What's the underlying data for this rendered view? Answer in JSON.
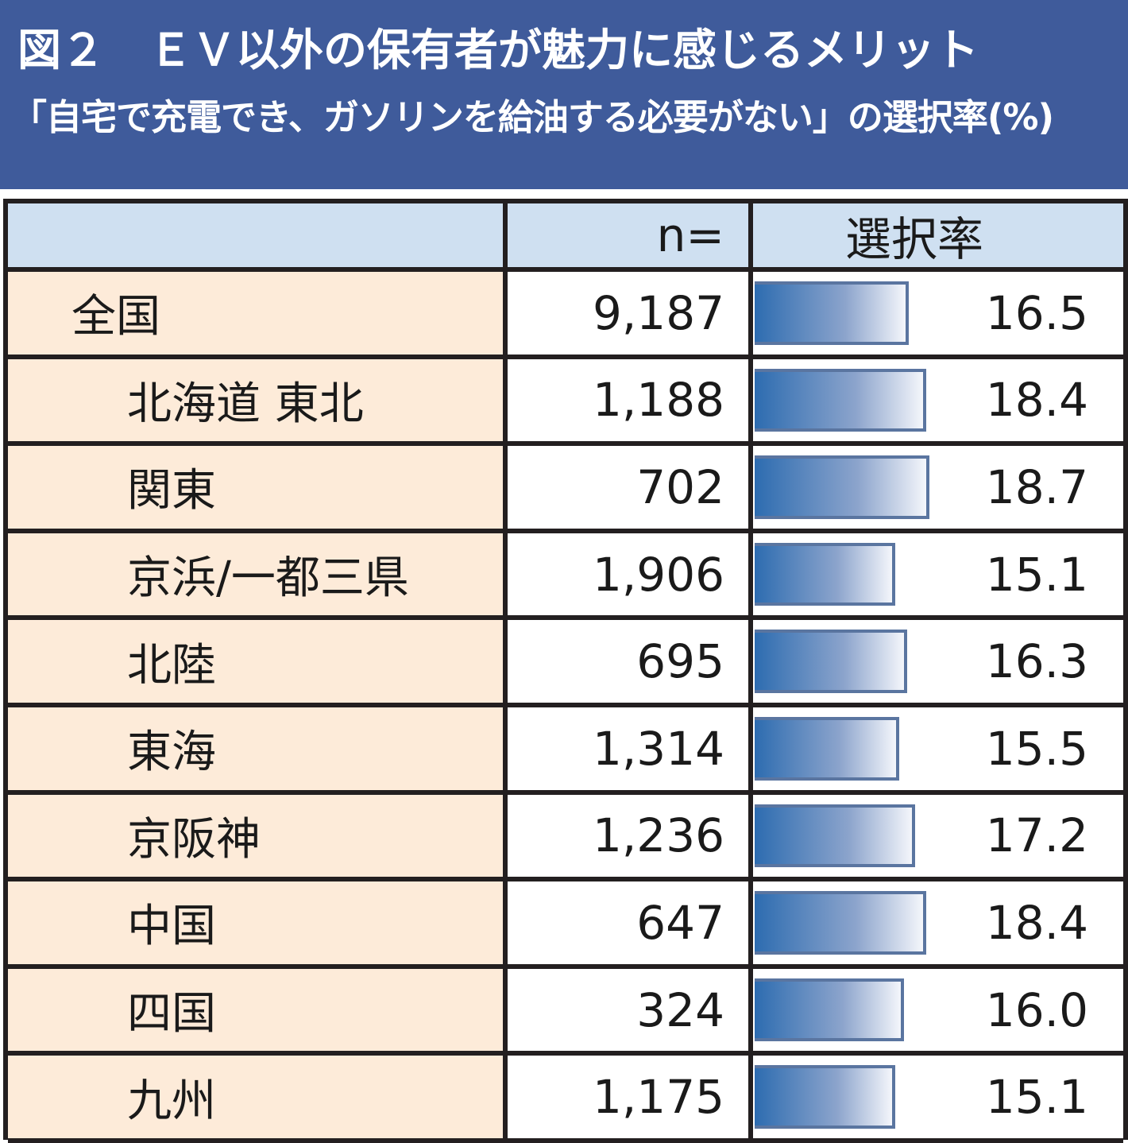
{
  "title": "図２　ＥＶ以外の保有者が魅力に感じるメリット",
  "subtitle": "「自宅で充電でき、ガソリンを給油する必要がない」の選択率(%)",
  "header": {
    "region": "",
    "n": "n=",
    "rate": "選択率"
  },
  "colors": {
    "banner": "#3f5b9b",
    "header_bg": "#cfe0f1",
    "label_bg": "#fdebd9",
    "bar": "#2d6cb0"
  },
  "chart_data": {
    "type": "bar",
    "title": "「自宅で充電でき、ガソリンを給油する必要がない」の選択率(%)",
    "categories": [
      "全国",
      "北海道 東北",
      "関東",
      "京浜/一都三県",
      "北陸",
      "東海",
      "京阪神",
      "中国",
      "四国",
      "九州"
    ],
    "n": [
      "9,187",
      "1,188",
      "702",
      "1,906",
      "695",
      "1,314",
      "1,236",
      "647",
      "324",
      "1,175"
    ],
    "values": [
      16.5,
      18.4,
      18.7,
      15.1,
      16.3,
      15.5,
      17.2,
      18.4,
      16.0,
      15.1
    ],
    "labels": [
      "16.5",
      "18.4",
      "18.7",
      "15.1",
      "16.3",
      "15.5",
      "17.2",
      "18.4",
      "16.0",
      "15.1"
    ],
    "xlim": [
      0,
      40
    ]
  }
}
